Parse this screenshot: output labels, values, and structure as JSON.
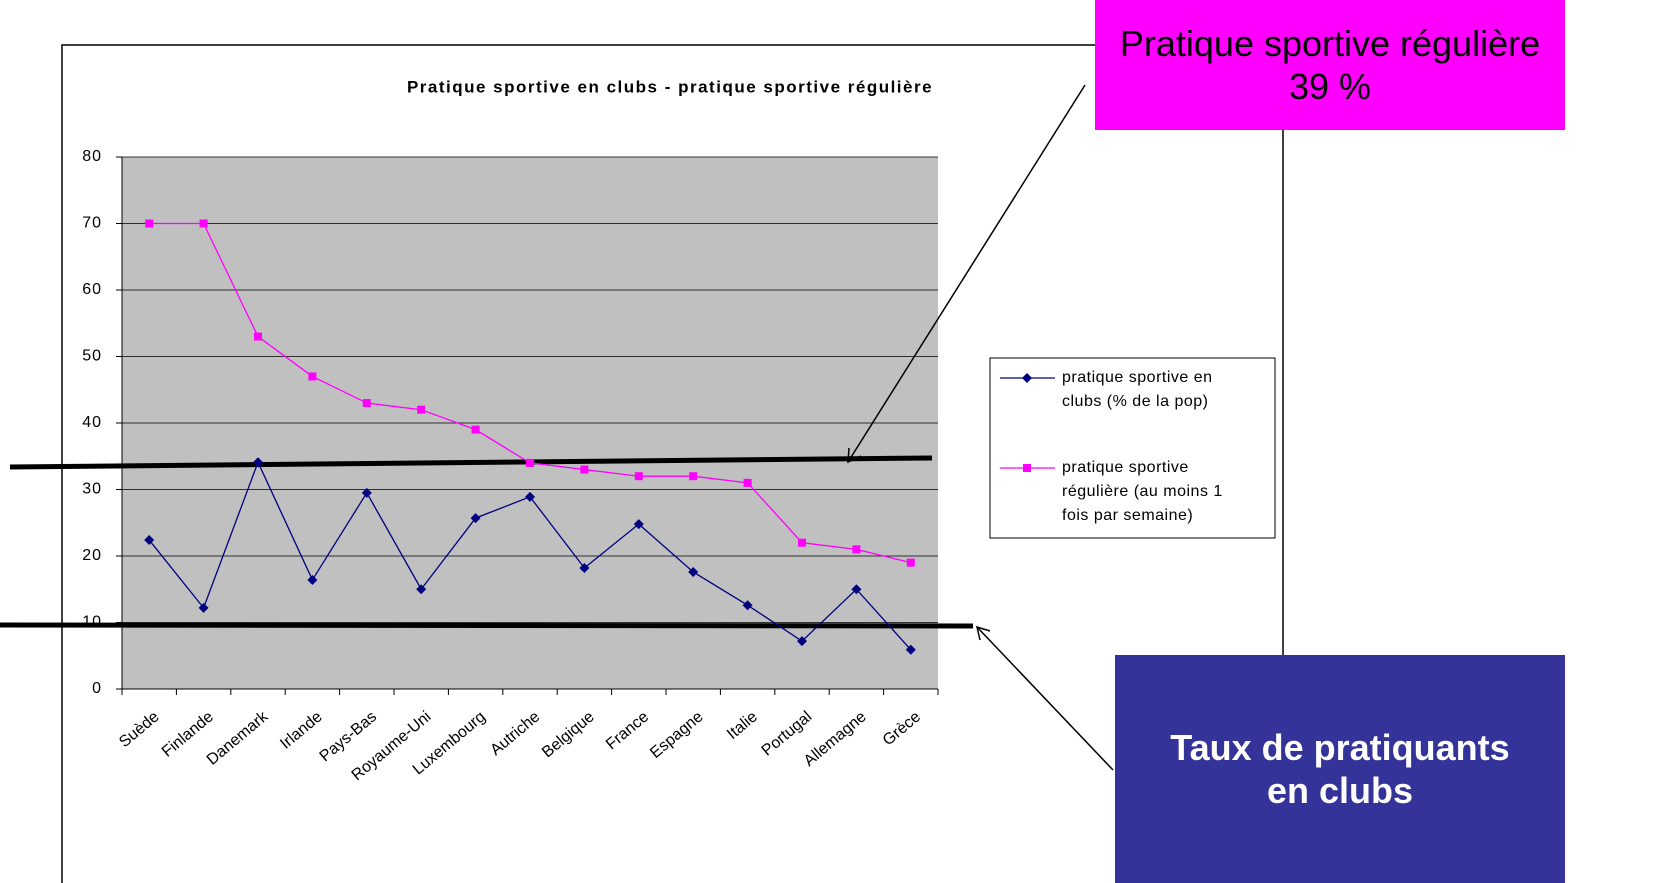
{
  "chart_data": {
    "type": "line",
    "title": "Pratique sportive en clubs - pratique sportive régulière",
    "categories": [
      "Suède",
      "Finlande",
      "Danemark",
      "Irlande",
      "Pays-Bas",
      "Royaume-Uni",
      "Luxembourg",
      "Autriche",
      "Belgique",
      "France",
      "Espagne",
      "Italie",
      "Portugal",
      "Allemagne",
      "Grèce"
    ],
    "series": [
      {
        "name": "pratique sportive en clubs (% de la pop)",
        "color": "#000080",
        "marker": "diamond",
        "values": [
          22.4,
          12.2,
          34.1,
          16.4,
          29.5,
          15.0,
          25.7,
          28.9,
          18.2,
          24.8,
          17.6,
          12.6,
          7.2,
          15.0,
          5.9
        ]
      },
      {
        "name": "pratique sportive régulière (au moins 1 fois par semaine)",
        "color": "#ff00ff",
        "marker": "square",
        "values": [
          70,
          70,
          53,
          47,
          43,
          42,
          39,
          34,
          33,
          32,
          32,
          31,
          22,
          21,
          19
        ]
      }
    ],
    "ylim": [
      0,
      80
    ],
    "yticks": [
      0,
      10,
      20,
      30,
      40,
      50,
      60,
      70,
      80
    ],
    "grid": true,
    "legend": "right",
    "annotations": [
      {
        "text": "Pratique sportive régulière 39 %",
        "color": "#ff00ff"
      },
      {
        "text": "Taux de pratiquants en clubs",
        "color": "#333399"
      }
    ]
  }
}
